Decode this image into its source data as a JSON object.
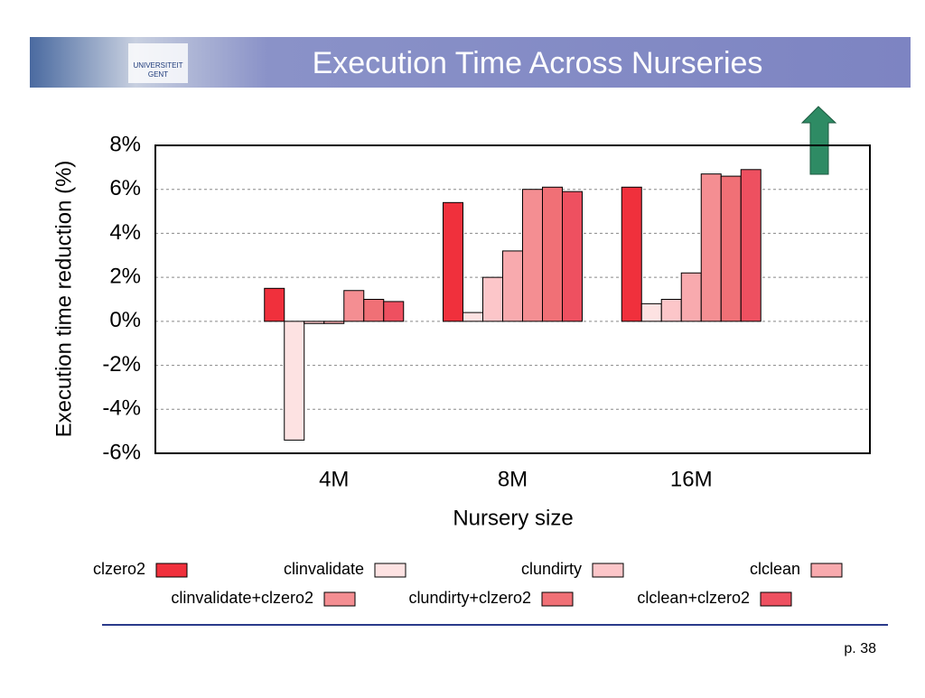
{
  "header": {
    "title": "Execution Time Across Nurseries",
    "logo_text": [
      "UNIVERSITEIT",
      "GENT"
    ]
  },
  "chart_data": {
    "type": "bar",
    "y_label": "Execution time reduction (%)",
    "x_label": "Nursery size",
    "categories": [
      "4M",
      "8M",
      "16M"
    ],
    "series": [
      {
        "name": "clzero2",
        "color": "#f0303c",
        "values": [
          1.5,
          5.4,
          6.1
        ]
      },
      {
        "name": "clinvalidate",
        "color": "#fde2e2",
        "values": [
          -5.4,
          0.4,
          0.8
        ]
      },
      {
        "name": "clundirty",
        "color": "#fcc6c9",
        "values": [
          -0.1,
          2.0,
          1.0
        ]
      },
      {
        "name": "clclean",
        "color": "#f8aaae",
        "values": [
          -0.1,
          3.2,
          2.2
        ]
      },
      {
        "name": "clinvalidate+clzero2",
        "color": "#f48e92",
        "values": [
          1.4,
          6.0,
          6.7
        ]
      },
      {
        "name": "clundirty+clzero2",
        "color": "#f07076",
        "values": [
          1.0,
          6.1,
          6.6
        ]
      },
      {
        "name": "clclean+clzero2",
        "color": "#ee5060",
        "values": [
          0.9,
          5.9,
          6.9
        ]
      }
    ],
    "ylim": [
      -6,
      8
    ],
    "yticks": [
      {
        "value": -6,
        "label": "-6%"
      },
      {
        "value": -4,
        "label": "-4%"
      },
      {
        "value": -2,
        "label": "-2%"
      },
      {
        "value": 0,
        "label": "0%"
      },
      {
        "value": 2,
        "label": "2%"
      },
      {
        "value": 4,
        "label": "4%"
      },
      {
        "value": 6,
        "label": "6%"
      },
      {
        "value": 8,
        "label": "8%"
      }
    ],
    "grid": true
  },
  "footer": {
    "page": "p. 38"
  }
}
